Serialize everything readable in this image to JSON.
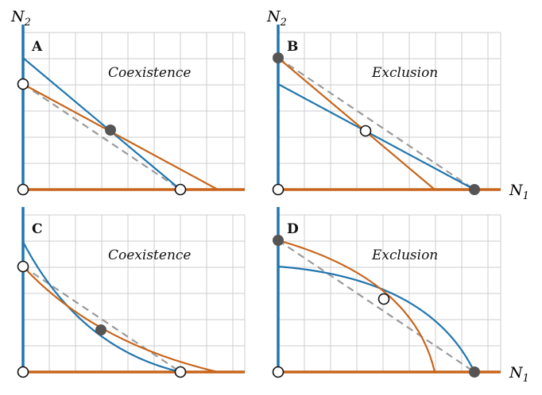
{
  "colors": {
    "species1": "#2176ae",
    "species2": "#c8651b",
    "neutral": "#9a9a9a",
    "grid": "#cccccc",
    "stable_point": "#555555"
  },
  "axis_labels": {
    "y_main": "N",
    "y_sub": "2",
    "x_main": "N",
    "x_sub": "1"
  },
  "panels": [
    {
      "letter": "A",
      "regime": "Coexistence",
      "curves": "linear"
    },
    {
      "letter": "B",
      "regime": "Exclusion",
      "curves": "linear"
    },
    {
      "letter": "C",
      "regime": "Coexistence",
      "curves": "convex"
    },
    {
      "letter": "D",
      "regime": "Exclusion",
      "curves": "concave"
    }
  ]
}
